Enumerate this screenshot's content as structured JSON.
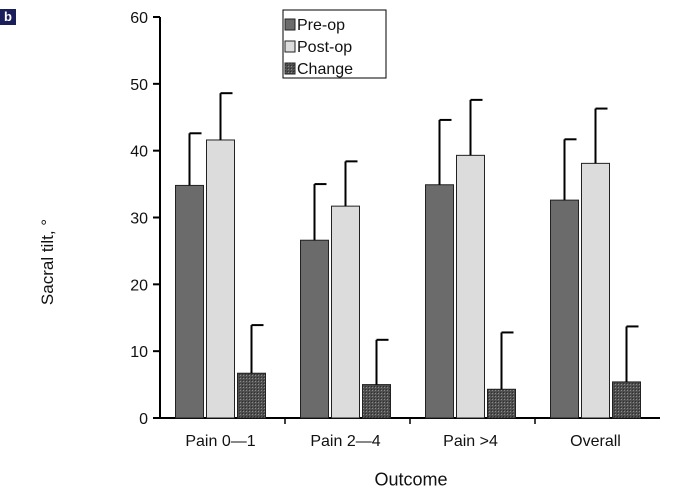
{
  "panel_label": "b",
  "chart_data": {
    "type": "bar",
    "xlabel": "Outcome",
    "ylabel": "Sacral tilt, °",
    "ylim": [
      0,
      60
    ],
    "yticks": [
      "0",
      "10",
      "20",
      "30",
      "40",
      "50",
      "60"
    ],
    "categories": [
      "Pain 0—1",
      "Pain 2—4",
      "Pain >4",
      "Overall"
    ],
    "error_bars": "upper",
    "legend_position": "top-center",
    "series": [
      {
        "name": "Pre-op",
        "values": [
          34.8,
          26.6,
          34.9,
          32.6
        ],
        "errors": [
          7.8,
          8.4,
          9.7,
          9.1
        ],
        "color": "#6b6b6b"
      },
      {
        "name": "Post-op",
        "values": [
          41.6,
          31.7,
          39.3,
          38.1
        ],
        "errors": [
          7.0,
          6.7,
          8.3,
          8.2
        ],
        "color": "#dcdcdc"
      },
      {
        "name": "Change",
        "values": [
          6.7,
          5.0,
          4.3,
          5.4
        ],
        "errors": [
          7.2,
          6.7,
          8.5,
          8.3
        ],
        "color": "#4f4f4f"
      }
    ]
  }
}
